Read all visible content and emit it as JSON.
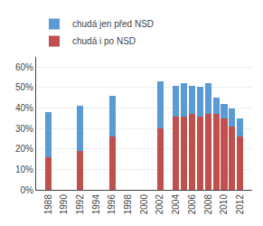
{
  "chart_data": {
    "type": "bar",
    "stacked": true,
    "x": [
      1988,
      1992,
      1996,
      2002,
      2004,
      2005,
      2006,
      2007,
      2008,
      2009,
      2010,
      2011,
      2012
    ],
    "series": [
      {
        "name": "chudá i po NSD",
        "color": "#C0504D",
        "values": [
          0.16,
          0.19,
          0.26,
          0.3,
          0.36,
          0.36,
          0.37,
          0.36,
          0.37,
          0.37,
          0.35,
          0.31,
          0.26
        ]
      },
      {
        "name": "chudá jen před NSD",
        "color": "#5B9BD5",
        "values": [
          0.22,
          0.22,
          0.2,
          0.23,
          0.15,
          0.16,
          0.14,
          0.145,
          0.15,
          0.08,
          0.07,
          0.09,
          0.09
        ]
      }
    ],
    "xlim": [
      1986.5,
      2013.5
    ],
    "xticks": [
      1988,
      1990,
      1992,
      1994,
      1996,
      1998,
      2000,
      2002,
      2004,
      2006,
      2008,
      2010,
      2012
    ],
    "ylim": [
      0,
      0.65
    ],
    "yticks": [
      {
        "value": 0,
        "label": "0%"
      },
      {
        "value": 0.1,
        "label": "10%"
      },
      {
        "value": 0.2,
        "label": "20%"
      },
      {
        "value": 0.3,
        "label": "30%"
      },
      {
        "value": 0.4,
        "label": "40%"
      },
      {
        "value": 0.5,
        "label": "50%"
      },
      {
        "value": 0.6,
        "label": "60%"
      }
    ],
    "grid": true,
    "legend": "upper left"
  }
}
